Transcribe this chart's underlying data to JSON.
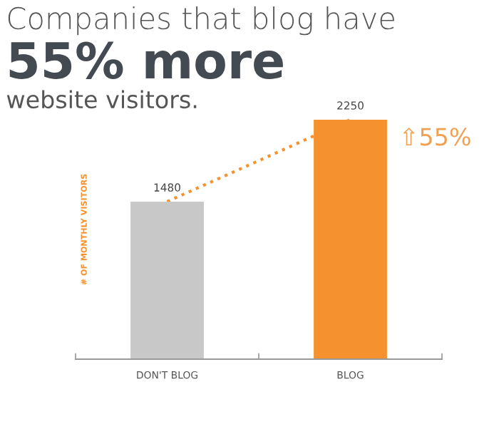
{
  "chart_data": {
    "type": "bar",
    "title": "Companies that blog have\n55% more\nwebsite visitors.",
    "ylabel": "# OF MONTHLY VISITORS",
    "categories": [
      "DON'T BLOG",
      "BLOG"
    ],
    "series": [
      {
        "colors": [
          "#c8c8c8",
          "#f5922f"
        ],
        "values": [
          1480,
          2250
        ],
        "value_labels": [
          "1480",
          "2250"
        ]
      },
      {
        "type": "line",
        "color": "#f5922f",
        "values": [
          1480,
          2250
        ],
        "line_style": "dotted",
        "marker": "none"
      }
    ],
    "annotations": [
      {
        "text": "⇧55%",
        "x": "BLOG",
        "y": 2250
      }
    ],
    "grid": false,
    "legend": false
  }
}
